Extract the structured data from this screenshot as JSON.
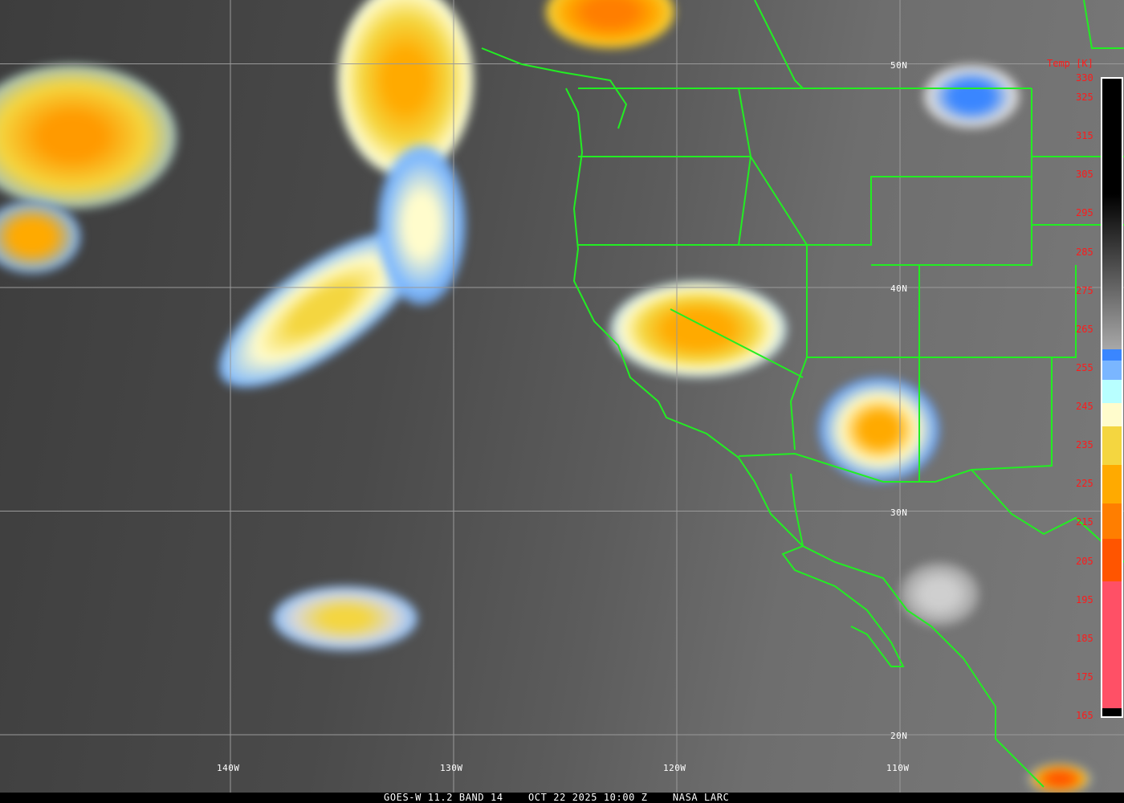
{
  "title_bar": "GOES-W 11.2 BAND 14    OCT 22 2025 10:00 Z    NASA LARC",
  "colorbar": {
    "title": "Temp [K]",
    "range_k": [
      165,
      330
    ],
    "ticks": [
      "330",
      "325",
      "315",
      "305",
      "295",
      "285",
      "275",
      "265",
      "255",
      "245",
      "235",
      "225",
      "215",
      "205",
      "195",
      "185",
      "175",
      "165"
    ],
    "segments": [
      {
        "from": 330,
        "to": 300,
        "color": "#000000"
      },
      {
        "from": 300,
        "to": 260,
        "gradient": [
          "#000000",
          "#a8a8a8"
        ]
      },
      {
        "from": 260,
        "to": 257,
        "color": "#3a86ff"
      },
      {
        "from": 257,
        "to": 252,
        "color": "#7ab6ff"
      },
      {
        "from": 252,
        "to": 246,
        "color": "#b8ffff"
      },
      {
        "from": 246,
        "to": 240,
        "color": "#fffccc"
      },
      {
        "from": 240,
        "to": 230,
        "color": "#f4d640"
      },
      {
        "from": 230,
        "to": 220,
        "color": "#ffaa00"
      },
      {
        "from": 220,
        "to": 211,
        "color": "#ff7e00"
      },
      {
        "from": 211,
        "to": 200,
        "color": "#ff5500"
      },
      {
        "from": 200,
        "to": 167,
        "color": "#ff5066"
      },
      {
        "from": 167,
        "to": 165,
        "color": "#000000"
      }
    ]
  },
  "grid": {
    "longitudes": [
      {
        "label": "140W",
        "value": -140
      },
      {
        "label": "130W",
        "value": -130
      },
      {
        "label": "120W",
        "value": -120
      },
      {
        "label": "110W",
        "value": -110
      }
    ],
    "latitudes": [
      {
        "label": "50N",
        "value": 50
      },
      {
        "label": "40N",
        "value": 40
      },
      {
        "label": "30N",
        "value": 30
      },
      {
        "label": "20N",
        "value": 20
      }
    ]
  },
  "colors": {
    "boundaries": "#22ee22",
    "grid": "#9a9a9a",
    "labels": "#ff1a1a"
  }
}
